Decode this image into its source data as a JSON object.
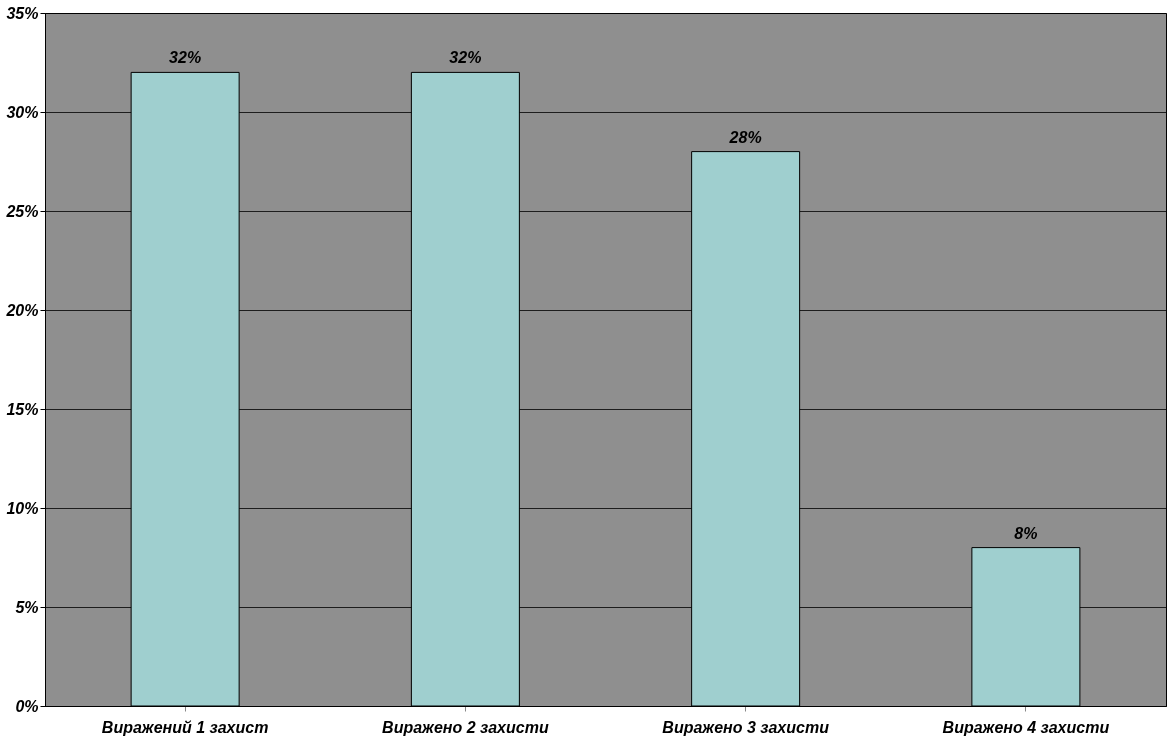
{
  "chart_data": {
    "type": "bar",
    "categories": [
      "Виражений 1 захист",
      "Виражено 2 захисти",
      "Виражено 3 захисти",
      "Виражено 4 захисти"
    ],
    "values": [
      32,
      32,
      28,
      8
    ],
    "color": "#9fcfcf",
    "ylim": [
      0,
      35
    ],
    "yticks": [
      {
        "value": 0,
        "label": "0%"
      },
      {
        "value": 5,
        "label": "5%"
      },
      {
        "value": 10,
        "label": "10%"
      },
      {
        "value": 15,
        "label": "15%"
      },
      {
        "value": 20,
        "label": "20%"
      },
      {
        "value": 25,
        "label": "25%"
      },
      {
        "value": 30,
        "label": "30%"
      },
      {
        "value": 35,
        "label": "35%"
      }
    ],
    "value_labels": [
      "32%",
      "32%",
      "28%",
      "8%"
    ],
    "grid": "y"
  }
}
